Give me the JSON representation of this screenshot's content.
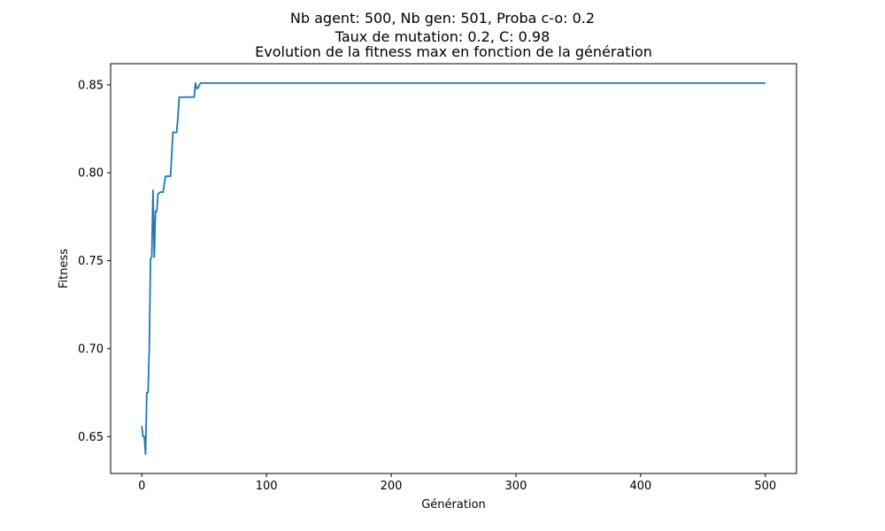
{
  "figure": {
    "suptitle_line1": "Nb agent: 500, Nb gen: 501, Proba c-o: 0.2",
    "suptitle_line2": "Taux de mutation: 0.2, C: 0.98"
  },
  "chart_data": {
    "type": "line",
    "title": "Evolution de la fitness max en fonction de la génération",
    "xlabel": "Génération",
    "ylabel": "Fitness",
    "xlim": [
      -25,
      525
    ],
    "ylim": [
      0.629,
      0.862
    ],
    "xticks": [
      0,
      100,
      200,
      300,
      400,
      500
    ],
    "yticks": [
      0.65,
      0.7,
      0.75,
      0.8,
      0.85
    ],
    "ytick_labels": [
      "0.65",
      "0.70",
      "0.75",
      "0.80",
      "0.85"
    ],
    "grid": false,
    "line_color": "#1f77b4",
    "series": [
      {
        "x": [
          0,
          1,
          2,
          3,
          4,
          5,
          6,
          7,
          8,
          9,
          10,
          11,
          12,
          13,
          15,
          17,
          19,
          21,
          23,
          25,
          27,
          28,
          29,
          30,
          35,
          40,
          42,
          43,
          44,
          45,
          47,
          50,
          100,
          200,
          300,
          400,
          500
        ],
        "y": [
          0.656,
          0.65,
          0.65,
          0.64,
          0.675,
          0.675,
          0.7,
          0.751,
          0.752,
          0.79,
          0.752,
          0.778,
          0.778,
          0.788,
          0.789,
          0.789,
          0.798,
          0.798,
          0.798,
          0.823,
          0.823,
          0.823,
          0.832,
          0.843,
          0.843,
          0.843,
          0.843,
          0.851,
          0.848,
          0.848,
          0.851,
          0.851,
          0.851,
          0.851,
          0.851,
          0.851,
          0.851
        ]
      }
    ]
  }
}
